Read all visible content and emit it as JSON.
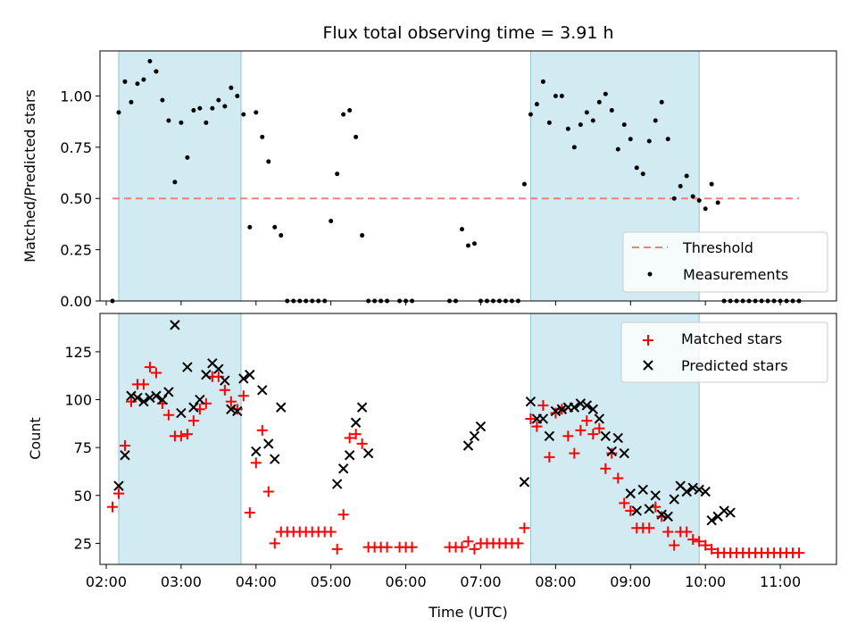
{
  "chart_data": [
    {
      "type": "scatter",
      "title": "Flux total observing time = 3.91 h",
      "xlabel": "",
      "ylabel": "Matched/Predicted stars",
      "xlim": [
        "01:55",
        "11:45"
      ],
      "ylim": [
        0,
        1.22
      ],
      "yticks": [
        "0.00",
        "0.25",
        "0.50",
        "0.75",
        "1.00"
      ],
      "shaded_intervals": [
        [
          "02:10",
          "03:48"
        ],
        [
          "07:40",
          "09:55"
        ]
      ],
      "threshold": {
        "label": "Threshold",
        "y": 0.5,
        "x_range": [
          "02:05",
          "11:15"
        ],
        "color": "#f08080"
      },
      "legend": {
        "position": "lower-right",
        "entries": [
          "Threshold",
          "Measurements"
        ]
      },
      "series": [
        {
          "name": "Measurements",
          "color": "#000000",
          "x": [
            "02:05",
            "02:10",
            "02:15",
            "02:20",
            "02:25",
            "02:30",
            "02:35",
            "02:40",
            "02:45",
            "02:50",
            "02:55",
            "03:00",
            "03:05",
            "03:10",
            "03:15",
            "03:20",
            "03:25",
            "03:30",
            "03:35",
            "03:40",
            "03:45",
            "03:50",
            "03:55",
            "04:00",
            "04:05",
            "04:10",
            "04:15",
            "04:20",
            "04:25",
            "04:30",
            "04:35",
            "04:40",
            "04:45",
            "04:50",
            "04:55",
            "05:00",
            "05:05",
            "05:10",
            "05:15",
            "05:20",
            "05:25",
            "05:30",
            "05:35",
            "05:40",
            "05:45",
            "05:55",
            "06:00",
            "06:05",
            "06:35",
            "06:40",
            "06:45",
            "06:50",
            "06:55",
            "07:00",
            "07:05",
            "07:10",
            "07:15",
            "07:20",
            "07:25",
            "07:30",
            "07:35",
            "07:40",
            "07:45",
            "07:50",
            "07:55",
            "08:00",
            "08:05",
            "08:10",
            "08:15",
            "08:20",
            "08:25",
            "08:30",
            "08:35",
            "08:40",
            "08:45",
            "08:50",
            "08:55",
            "09:00",
            "09:05",
            "09:10",
            "09:15",
            "09:20",
            "09:25",
            "09:30",
            "09:35",
            "09:40",
            "09:45",
            "09:50",
            "09:55",
            "10:00",
            "10:05",
            "10:10",
            "10:15",
            "10:20",
            "10:25",
            "10:30",
            "10:35",
            "10:40",
            "10:45",
            "10:50",
            "10:55",
            "11:00",
            "11:05",
            "11:10",
            "11:15"
          ],
          "y": [
            0.0,
            0.92,
            1.07,
            0.97,
            1.06,
            1.08,
            1.17,
            1.12,
            0.98,
            0.88,
            0.58,
            0.87,
            0.7,
            0.93,
            0.94,
            0.87,
            0.94,
            0.98,
            0.95,
            1.04,
            1.0,
            0.91,
            0.36,
            0.92,
            0.8,
            0.68,
            0.36,
            0.32,
            0.0,
            0.0,
            0.0,
            0.0,
            0.0,
            0.0,
            0.0,
            0.39,
            0.62,
            0.91,
            0.93,
            0.8,
            0.32,
            0.0,
            0.0,
            0.0,
            0.0,
            0.0,
            0.0,
            0.0,
            0.0,
            0.0,
            0.35,
            0.27,
            0.28,
            0.0,
            0.0,
            0.0,
            0.0,
            0.0,
            0.0,
            0.0,
            0.57,
            0.91,
            0.96,
            1.07,
            0.87,
            1.0,
            1.0,
            0.84,
            0.75,
            0.86,
            0.92,
            0.88,
            0.97,
            1.01,
            0.93,
            0.74,
            0.86,
            0.79,
            0.65,
            0.62,
            0.78,
            0.88,
            0.97,
            0.79,
            0.5,
            0.56,
            0.61,
            0.51,
            0.49,
            0.45,
            0.57,
            0.48,
            0.0,
            0.0,
            0.0,
            0.0,
            0.0,
            0.0,
            0.0,
            0.0,
            0.0,
            0.0,
            0.0,
            0.0,
            0.0
          ]
        }
      ]
    },
    {
      "type": "scatter",
      "title": "",
      "xlabel": "Time (UTC)",
      "ylabel": "Count",
      "xlim": [
        "01:55",
        "11:45"
      ],
      "ylim": [
        14,
        145
      ],
      "xticks": [
        "02:00",
        "03:00",
        "04:00",
        "05:00",
        "06:00",
        "07:00",
        "08:00",
        "09:00",
        "10:00",
        "11:00"
      ],
      "yticks": [
        "25",
        "50",
        "75",
        "100",
        "125"
      ],
      "shaded_intervals": [
        [
          "02:10",
          "03:48"
        ],
        [
          "07:40",
          "09:55"
        ]
      ],
      "legend": {
        "position": "top-right",
        "entries": [
          "Matched stars",
          "Predicted stars"
        ]
      },
      "series": [
        {
          "name": "Matched stars",
          "marker": "+",
          "color": "#ff0000",
          "x": [
            "02:05",
            "02:10",
            "02:15",
            "02:20",
            "02:25",
            "02:30",
            "02:35",
            "02:40",
            "02:45",
            "02:50",
            "02:55",
            "03:00",
            "03:05",
            "03:10",
            "03:15",
            "03:20",
            "03:25",
            "03:30",
            "03:35",
            "03:40",
            "03:45",
            "03:50",
            "03:55",
            "04:00",
            "04:05",
            "04:10",
            "04:15",
            "04:20",
            "04:25",
            "04:30",
            "04:35",
            "04:40",
            "04:45",
            "04:50",
            "04:55",
            "05:00",
            "05:05",
            "05:10",
            "05:15",
            "05:20",
            "05:25",
            "05:30",
            "05:35",
            "05:40",
            "05:45",
            "05:55",
            "06:00",
            "06:05",
            "06:35",
            "06:40",
            "06:45",
            "06:50",
            "06:55",
            "07:00",
            "07:05",
            "07:10",
            "07:15",
            "07:20",
            "07:25",
            "07:30",
            "07:35",
            "07:40",
            "07:45",
            "07:50",
            "07:55",
            "08:00",
            "08:05",
            "08:10",
            "08:15",
            "08:20",
            "08:25",
            "08:30",
            "08:35",
            "08:40",
            "08:45",
            "08:50",
            "08:55",
            "09:00",
            "09:05",
            "09:10",
            "09:15",
            "09:20",
            "09:25",
            "09:30",
            "09:35",
            "09:40",
            "09:45",
            "09:50",
            "09:55",
            "10:00",
            "10:05",
            "10:10",
            "10:15",
            "10:20",
            "10:25",
            "10:30",
            "10:35",
            "10:40",
            "10:45",
            "10:50",
            "10:55",
            "11:00",
            "11:05",
            "11:10",
            "11:15"
          ],
          "y": [
            44,
            51,
            76,
            99,
            108,
            108,
            117,
            114,
            98,
            92,
            81,
            81,
            82,
            89,
            95,
            98,
            112,
            112,
            105,
            99,
            95,
            102,
            41,
            67,
            84,
            52,
            25,
            31,
            31,
            31,
            31,
            31,
            31,
            31,
            31,
            31,
            22,
            40,
            80,
            82,
            77,
            23,
            23,
            23,
            23,
            23,
            23,
            23,
            23,
            23,
            23,
            26,
            22,
            25,
            25,
            25,
            25,
            25,
            25,
            25,
            33,
            90,
            86,
            97,
            70,
            93,
            95,
            81,
            72,
            84,
            89,
            82,
            85,
            64,
            72,
            59,
            46,
            42,
            33,
            33,
            33,
            44,
            39,
            31,
            24,
            31,
            31,
            27,
            26,
            24,
            22,
            20,
            20,
            20,
            20,
            20,
            20,
            20,
            20,
            20,
            20,
            20,
            20,
            20,
            20
          ]
        },
        {
          "name": "Predicted stars",
          "marker": "x",
          "color": "#000000",
          "x": [
            "02:10",
            "02:15",
            "02:20",
            "02:25",
            "02:30",
            "02:35",
            "02:40",
            "02:45",
            "02:50",
            "02:55",
            "03:00",
            "03:05",
            "03:10",
            "03:15",
            "03:20",
            "03:25",
            "03:30",
            "03:35",
            "03:40",
            "03:45",
            "03:50",
            "03:55",
            "04:00",
            "04:05",
            "04:10",
            "04:15",
            "04:20",
            "05:05",
            "05:10",
            "05:15",
            "05:20",
            "05:25",
            "05:30",
            "06:50",
            "06:55",
            "07:00",
            "07:35",
            "07:40",
            "07:45",
            "07:50",
            "07:55",
            "08:00",
            "08:05",
            "08:10",
            "08:15",
            "08:20",
            "08:25",
            "08:30",
            "08:35",
            "08:40",
            "08:45",
            "08:50",
            "08:55",
            "09:00",
            "09:05",
            "09:10",
            "09:15",
            "09:20",
            "09:25",
            "09:30",
            "09:35",
            "09:40",
            "09:45",
            "09:50",
            "09:55",
            "10:00",
            "10:05",
            "10:10",
            "10:15",
            "10:20"
          ],
          "y": [
            55,
            71,
            102,
            101,
            99,
            101,
            102,
            100,
            104,
            139,
            93,
            117,
            96,
            100,
            113,
            119,
            116,
            110,
            95,
            94,
            111,
            113,
            73,
            105,
            77,
            69,
            96,
            56,
            64,
            71,
            88,
            96,
            72,
            76,
            81,
            86,
            57,
            99,
            90,
            90,
            81,
            94,
            95,
            96,
            96,
            98,
            97,
            95,
            90,
            81,
            73,
            80,
            72,
            51,
            42,
            53,
            43,
            50,
            40,
            39,
            48,
            55,
            52,
            54,
            53,
            52,
            37,
            39,
            42,
            41
          ]
        }
      ]
    }
  ]
}
